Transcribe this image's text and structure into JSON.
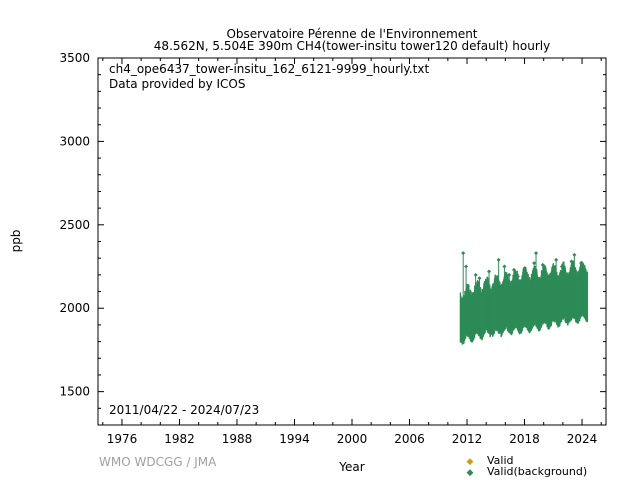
{
  "header": {
    "title": "Observatoire Pérenne de l'Environnement",
    "subtitle": "48.562N, 5.504E 390m    CH4(tower-insitu tower120 default) hourly"
  },
  "annotations": {
    "filename": "ch4_ope6437_tower-insitu_162_6121-9999_hourly.txt",
    "provider": "Data provided by ICOS",
    "date_range": "2011/04/22 - 2024/07/23",
    "credit": "WMO WDCGG / JMA"
  },
  "colors": {
    "valid": "#d4a000",
    "valid_background": "#2e8b57"
  },
  "chart_data": {
    "type": "scatter",
    "title": "Observatoire Pérenne de l'Environnement",
    "subtitle": "48.562N, 5.504E 390m    CH4(tower-insitu tower120 default) hourly",
    "xlabel": "Year",
    "ylabel": "ppb",
    "xlim": [
      1973.5,
      2026.5
    ],
    "ylim": [
      1300,
      3500
    ],
    "x_ticks": [
      1976,
      1982,
      1988,
      1994,
      2000,
      2006,
      2012,
      2018,
      2024
    ],
    "y_ticks": [
      1500,
      2000,
      2500,
      3000,
      3500
    ],
    "legend": [
      "Valid",
      "Valid(background)"
    ],
    "legend_position": "bottom-right",
    "grid": false,
    "series": [
      {
        "name": "Valid",
        "color": "#d4a000",
        "points": []
      },
      {
        "name": "Valid(background)",
        "color": "#2e8b57",
        "x_start": 2011.31,
        "x_end": 2024.56,
        "baseline_start": 1900,
        "baseline_end": 2005,
        "seasonal_amplitude": 35,
        "lower_envelope": [
          [
            2011.3,
            1810
          ],
          [
            2014,
            1850
          ],
          [
            2018,
            1880
          ],
          [
            2024.5,
            1950
          ]
        ],
        "upper_envelope": [
          [
            2011.3,
            2060
          ],
          [
            2014,
            2120
          ],
          [
            2018,
            2180
          ],
          [
            2024.5,
            2220
          ]
        ],
        "spikes": [
          [
            2011.6,
            2330
          ],
          [
            2011.9,
            2250
          ],
          [
            2012.9,
            2200
          ],
          [
            2013.3,
            2180
          ],
          [
            2014.3,
            2220
          ],
          [
            2015.3,
            2290
          ],
          [
            2015.9,
            2250
          ],
          [
            2016.4,
            2200
          ],
          [
            2016.9,
            2230
          ],
          [
            2017.3,
            2190
          ],
          [
            2018.0,
            2240
          ],
          [
            2019.0,
            2270
          ],
          [
            2019.2,
            2330
          ],
          [
            2019.9,
            2260
          ],
          [
            2020.1,
            2200
          ],
          [
            2021.3,
            2290
          ],
          [
            2021.9,
            2250
          ],
          [
            2022.9,
            2280
          ],
          [
            2023.2,
            2320
          ],
          [
            2023.9,
            2270
          ],
          [
            2024.3,
            2230
          ]
        ]
      }
    ]
  }
}
